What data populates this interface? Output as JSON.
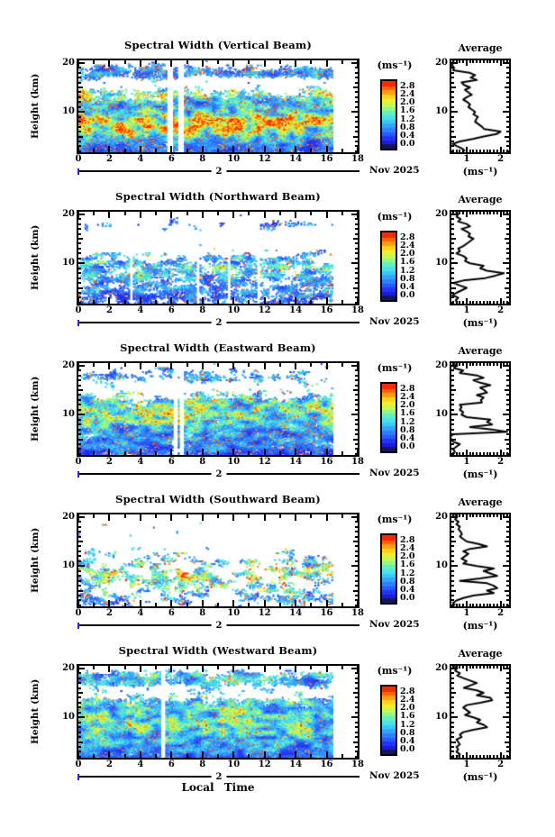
{
  "common": {
    "average_title": "Average",
    "units": "(ms⁻¹)",
    "date": "Nov 2025",
    "day": "2",
    "xlabel": "Local Time",
    "ylabel": "Height (km)",
    "x_tick_labels": [
      "0",
      "2",
      "4",
      "6",
      "8",
      "10",
      "12",
      "14",
      "16",
      "18"
    ],
    "y_tick_labels": [
      "20",
      "10"
    ],
    "avg_x_tick_labels": [
      "1",
      "2"
    ],
    "colorbar_tick_labels": [
      "2.8",
      "2.4",
      "2.0",
      "1.6",
      "1.2",
      "0.8",
      "0.4",
      "0.0"
    ]
  },
  "axes": {
    "x": {
      "min": 0,
      "max": 18,
      "major_step": 2,
      "minor_step": 1,
      "data_max": 16.4
    },
    "y": {
      "min": 1.8,
      "max": 20.5,
      "labeled_ticks": [
        20,
        10
      ],
      "minor_step": 1
    },
    "avg_x": {
      "min": 0.55,
      "max": 2.25,
      "major_ticks": [
        1,
        2
      ],
      "minor_step": 0.1
    },
    "colorbar": {
      "vmin": -0.2,
      "vmax": 3.05,
      "tick_values": [
        2.8,
        2.4,
        2.0,
        1.6,
        1.2,
        0.8,
        0.4,
        0.0
      ]
    }
  },
  "colormap": [
    [
      -0.001,
      "#15155a"
    ],
    [
      0.2,
      "#1b1bdf"
    ],
    [
      0.4,
      "#2136f2"
    ],
    [
      0.6,
      "#2a5aff"
    ],
    [
      0.8,
      "#2f7fff"
    ],
    [
      1.0,
      "#36a4ff"
    ],
    [
      1.2,
      "#3ec7fb"
    ],
    [
      1.4,
      "#49e2ea"
    ],
    [
      1.6,
      "#65efc0"
    ],
    [
      1.8,
      "#92f688"
    ],
    [
      2.0,
      "#c5f855"
    ],
    [
      2.2,
      "#f1ef2c"
    ],
    [
      2.4,
      "#ffd21d"
    ],
    [
      2.6,
      "#ff9e12"
    ],
    [
      2.8,
      "#ff6309"
    ],
    [
      9.9,
      "#f92b06"
    ]
  ],
  "chart_data": [
    {
      "type": "heatmap",
      "title": "Spectral Width (Vertical Beam)",
      "seed": 101,
      "hot": 0.1,
      "gaps": [
        5.9,
        6.6
      ],
      "gap_halfwidth": 0.17,
      "density_profile": [
        [
          1.8,
          0.75
        ],
        [
          3,
          0.85
        ],
        [
          5,
          0.9
        ],
        [
          7,
          0.95
        ],
        [
          9,
          0.95
        ],
        [
          10.5,
          0.9
        ],
        [
          12,
          0.75
        ],
        [
          13,
          0.6
        ],
        [
          14,
          0.45
        ],
        [
          15,
          0.28
        ],
        [
          15.8,
          0.15
        ],
        [
          16.6,
          0.28
        ],
        [
          17.4,
          0.62
        ],
        [
          18.4,
          0.65
        ],
        [
          19,
          0.45
        ],
        [
          19.8,
          0.2
        ],
        [
          20.5,
          0.06
        ]
      ],
      "mean_profile": [
        [
          1.8,
          0.55
        ],
        [
          3,
          0.7
        ],
        [
          4.5,
          1.0
        ],
        [
          5.5,
          1.6
        ],
        [
          7,
          1.9
        ],
        [
          8.5,
          1.9
        ],
        [
          9.5,
          1.6
        ],
        [
          10.5,
          1.25
        ],
        [
          11.5,
          1.0
        ],
        [
          12.5,
          1.2
        ],
        [
          13.5,
          1.5
        ],
        [
          14.5,
          1.2
        ],
        [
          15.5,
          1.0
        ],
        [
          17,
          0.8
        ],
        [
          18.5,
          0.75
        ],
        [
          20.5,
          0.55
        ]
      ],
      "average": {
        "h_top": 20.5,
        "h_step": 0.5,
        "values": [
          0.62,
          0.6,
          0.57,
          0.63,
          0.6,
          1.08,
          1.25,
          1.12,
          1.3,
          0.85,
          0.92,
          1.1,
          0.95,
          1.05,
          1.15,
          1.0,
          0.9,
          1.02,
          1.1,
          1.05,
          1.15,
          1.25,
          1.2,
          1.33,
          1.28,
          1.25,
          1.35,
          1.45,
          1.52,
          2.0,
          1.88,
          1.5,
          1.18,
          0.8,
          0.58,
          0.72,
          0.88,
          0.95
        ]
      }
    },
    {
      "type": "heatmap",
      "title": "Spectral Width (Northward Beam)",
      "seed": 202,
      "hot": 0.06,
      "gaps": [
        3.4,
        7.7,
        9.7,
        11.6
      ],
      "gap_halfwidth": 0.12,
      "density_profile": [
        [
          1.8,
          0.45
        ],
        [
          3,
          0.55
        ],
        [
          5,
          0.5
        ],
        [
          6.5,
          0.55
        ],
        [
          8,
          0.52
        ],
        [
          9.5,
          0.55
        ],
        [
          11,
          0.45
        ],
        [
          12,
          0.3
        ],
        [
          13,
          0.15
        ],
        [
          14.5,
          0.08
        ],
        [
          16,
          0.06
        ],
        [
          17,
          0.26
        ],
        [
          18,
          0.3
        ],
        [
          19,
          0.2
        ],
        [
          20,
          0.07
        ],
        [
          20.5,
          0.03
        ]
      ],
      "mean_profile": [
        [
          1.8,
          0.55
        ],
        [
          4,
          0.7
        ],
        [
          6,
          0.8
        ],
        [
          7.5,
          1.0
        ],
        [
          9,
          1.2
        ],
        [
          10.5,
          1.0
        ],
        [
          12,
          0.9
        ],
        [
          14,
          1.0
        ],
        [
          16,
          0.9
        ],
        [
          18,
          0.7
        ],
        [
          20.5,
          0.6
        ]
      ],
      "average": {
        "h_top": 20.5,
        "h_step": 0.5,
        "values": [
          0.68,
          0.75,
          0.7,
          0.82,
          0.75,
          1.0,
          1.1,
          0.85,
          1.0,
          1.1,
          1.05,
          1.2,
          1.1,
          1.0,
          0.9,
          0.75,
          0.8,
          0.7,
          0.9,
          1.0,
          0.95,
          1.1,
          1.5,
          1.4,
          1.6,
          2.1,
          1.85,
          1.55,
          0.9,
          0.62,
          0.8,
          1.0,
          0.85,
          0.7,
          0.58,
          0.75,
          0.68,
          0.72
        ]
      }
    },
    {
      "type": "heatmap",
      "title": "Spectral Width (Eastward Beam)",
      "seed": 303,
      "hot": 0.08,
      "gaps": [
        6.2,
        6.6
      ],
      "gap_halfwidth": 0.15,
      "density_profile": [
        [
          1.8,
          0.7
        ],
        [
          3,
          0.78
        ],
        [
          4.5,
          0.72
        ],
        [
          6,
          0.75
        ],
        [
          8,
          0.8
        ],
        [
          9.5,
          0.85
        ],
        [
          11,
          0.8
        ],
        [
          12.5,
          0.68
        ],
        [
          13.5,
          0.45
        ],
        [
          14.5,
          0.3
        ],
        [
          15.5,
          0.18
        ],
        [
          16.5,
          0.3
        ],
        [
          17.5,
          0.45
        ],
        [
          18.5,
          0.4
        ],
        [
          19.5,
          0.25
        ],
        [
          20.5,
          0.06
        ]
      ],
      "mean_profile": [
        [
          1.8,
          0.55
        ],
        [
          4,
          0.7
        ],
        [
          6,
          0.8
        ],
        [
          7.5,
          1.1
        ],
        [
          9,
          1.5
        ],
        [
          10.5,
          1.6
        ],
        [
          11.5,
          1.4
        ],
        [
          12.5,
          1.3
        ],
        [
          14,
          1.2
        ],
        [
          16,
          1.0
        ],
        [
          18,
          0.8
        ],
        [
          20.5,
          0.6
        ]
      ],
      "average": {
        "h_top": 20.5,
        "h_step": 0.5,
        "values": [
          0.6,
          0.7,
          0.62,
          0.9,
          0.8,
          1.3,
          1.5,
          1.2,
          1.4,
          1.7,
          1.4,
          1.52,
          1.6,
          1.3,
          1.5,
          1.42,
          1.45,
          0.8,
          0.85,
          0.8,
          0.9,
          0.85,
          1.0,
          1.7,
          1.6,
          1.75,
          1.1,
          1.75,
          2.2,
          0.6,
          0.5,
          0.55,
          0.6,
          0.8,
          0.7,
          0.6,
          0.65,
          0.62
        ]
      }
    },
    {
      "type": "heatmap",
      "title": "Spectral Width (Southward Beam)",
      "seed": 404,
      "hot": 0.13,
      "gaps": [],
      "gap_halfwidth": 0.12,
      "density_profile": [
        [
          1.8,
          0.3
        ],
        [
          3,
          0.4
        ],
        [
          4.5,
          0.35
        ],
        [
          6,
          0.4
        ],
        [
          7.5,
          0.45
        ],
        [
          9,
          0.45
        ],
        [
          10.5,
          0.4
        ],
        [
          12,
          0.35
        ],
        [
          13,
          0.25
        ],
        [
          14,
          0.12
        ],
        [
          15.5,
          0.07
        ],
        [
          17,
          0.1
        ],
        [
          18.5,
          0.1
        ],
        [
          19.5,
          0.07
        ],
        [
          20.5,
          0.02
        ]
      ],
      "mean_profile": [
        [
          1.8,
          0.7
        ],
        [
          3.5,
          1.0
        ],
        [
          5,
          1.2
        ],
        [
          7,
          1.4
        ],
        [
          8.5,
          1.5
        ],
        [
          10,
          1.2
        ],
        [
          12,
          1.0
        ],
        [
          14,
          0.9
        ],
        [
          16,
          1.0
        ],
        [
          18,
          0.9
        ],
        [
          20.5,
          0.7
        ]
      ],
      "average": {
        "h_top": 20.5,
        "h_step": 0.5,
        "values": [
          0.65,
          0.72,
          0.66,
          0.76,
          0.7,
          0.8,
          0.76,
          0.82,
          0.86,
          0.8,
          0.9,
          1.0,
          1.35,
          1.6,
          1.1,
          0.9,
          1.05,
          0.95,
          0.85,
          1.0,
          0.9,
          1.3,
          1.8,
          1.5,
          1.7,
          1.9,
          1.4,
          0.8,
          1.6,
          1.8,
          1.9,
          1.6,
          1.8,
          1.2,
          0.9,
          0.7,
          0.6,
          0.66
        ]
      }
    },
    {
      "type": "heatmap",
      "title": "Spectral Width (Westward Beam)",
      "seed": 505,
      "hot": 0.05,
      "gaps": [
        5.4
      ],
      "gap_halfwidth": 0.15,
      "density_profile": [
        [
          1.8,
          0.75
        ],
        [
          3,
          0.85
        ],
        [
          5,
          0.9
        ],
        [
          7,
          0.92
        ],
        [
          9,
          0.9
        ],
        [
          10.5,
          0.9
        ],
        [
          12,
          0.8
        ],
        [
          13,
          0.6
        ],
        [
          14,
          0.38
        ],
        [
          15.3,
          0.2
        ],
        [
          16.2,
          0.3
        ],
        [
          17,
          0.65
        ],
        [
          18,
          0.7
        ],
        [
          18.8,
          0.55
        ],
        [
          19.6,
          0.3
        ],
        [
          20.5,
          0.08
        ]
      ],
      "mean_profile": [
        [
          1.8,
          0.55
        ],
        [
          3.5,
          0.8
        ],
        [
          5.5,
          1.0
        ],
        [
          7.5,
          1.2
        ],
        [
          9.5,
          1.3
        ],
        [
          11,
          1.2
        ],
        [
          12.5,
          1.1
        ],
        [
          14,
          1.1
        ],
        [
          15.5,
          1.0
        ],
        [
          17,
          0.95
        ],
        [
          18.5,
          1.05
        ],
        [
          19.5,
          0.9
        ],
        [
          20.5,
          0.7
        ]
      ],
      "average": {
        "h_top": 20.5,
        "h_step": 0.5,
        "values": [
          0.62,
          0.7,
          0.66,
          0.8,
          0.72,
          0.9,
          1.1,
          1.3,
          1.1,
          0.92,
          1.3,
          1.5,
          1.3,
          1.7,
          1.75,
          1.4,
          1.0,
          0.9,
          1.0,
          1.1,
          0.95,
          1.2,
          1.4,
          1.3,
          1.5,
          1.6,
          1.2,
          0.9,
          0.8,
          0.85,
          0.7,
          0.75,
          0.8,
          0.7,
          0.75,
          0.7,
          0.8,
          0.75
        ]
      }
    }
  ]
}
